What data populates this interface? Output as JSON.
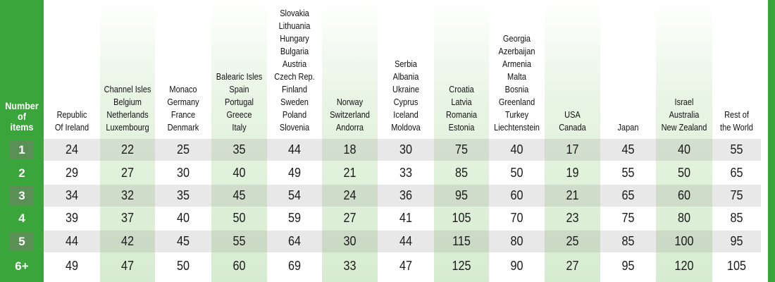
{
  "table": {
    "corner_label": [
      "Number",
      "of",
      "items"
    ],
    "columns": [
      {
        "lines": [
          "Republic",
          "Of Ireland"
        ]
      },
      {
        "lines": [
          "Channel Isles",
          "Belgium",
          "Netherlands",
          "Luxembourg"
        ]
      },
      {
        "lines": [
          "Monaco",
          "Germany",
          "France",
          "Denmark"
        ]
      },
      {
        "lines": [
          "Balearic Isles",
          "Spain",
          "Portugal",
          "Greece",
          "Italy"
        ]
      },
      {
        "lines": [
          "Slovakia",
          "Lithuania",
          "Hungary",
          "Bulgaria",
          "Austria",
          "Czech Rep.",
          "Finland",
          "Sweden",
          "Poland",
          "Slovenia"
        ]
      },
      {
        "lines": [
          "Norway",
          "Switzerland",
          "Andorra"
        ]
      },
      {
        "lines": [
          "Serbia",
          "Albania",
          "Ukraine",
          "Cyprus",
          "Iceland",
          "Moldova"
        ]
      },
      {
        "lines": [
          "Croatia",
          "Latvia",
          "Romania",
          "Estonia"
        ]
      },
      {
        "lines": [
          "Georgia",
          "Azerbaijan",
          "Armenia",
          "Malta",
          "Bosnia",
          "Greenland",
          "Turkey",
          "Liechtenstein"
        ]
      },
      {
        "lines": [
          "USA",
          "Canada"
        ]
      },
      {
        "lines": [
          "Japan"
        ]
      },
      {
        "lines": [
          "Israel",
          "Australia",
          "New Zealand"
        ]
      },
      {
        "lines": [
          "Rest of",
          "the World"
        ]
      }
    ],
    "rows": [
      {
        "label": "1",
        "values": [
          "24",
          "22",
          "25",
          "35",
          "44",
          "18",
          "30",
          "75",
          "40",
          "17",
          "45",
          "40",
          "55"
        ]
      },
      {
        "label": "2",
        "values": [
          "29",
          "27",
          "30",
          "40",
          "49",
          "21",
          "33",
          "85",
          "50",
          "19",
          "55",
          "50",
          "65"
        ]
      },
      {
        "label": "3",
        "values": [
          "34",
          "32",
          "35",
          "45",
          "54",
          "24",
          "36",
          "95",
          "60",
          "21",
          "65",
          "60",
          "75"
        ]
      },
      {
        "label": "4",
        "values": [
          "39",
          "37",
          "40",
          "50",
          "59",
          "27",
          "41",
          "105",
          "70",
          "23",
          "75",
          "80",
          "85"
        ]
      },
      {
        "label": "5",
        "values": [
          "44",
          "42",
          "45",
          "55",
          "64",
          "30",
          "44",
          "115",
          "80",
          "25",
          "85",
          "100",
          "95"
        ]
      },
      {
        "label": "6+",
        "values": [
          "49",
          "47",
          "50",
          "60",
          "69",
          "33",
          "47",
          "125",
          "90",
          "27",
          "95",
          "120",
          "105"
        ]
      }
    ]
  },
  "colors": {
    "accent_green": "#3aa53a",
    "label_box": "#5a8f55",
    "shaded_column": "#d6eccf"
  }
}
